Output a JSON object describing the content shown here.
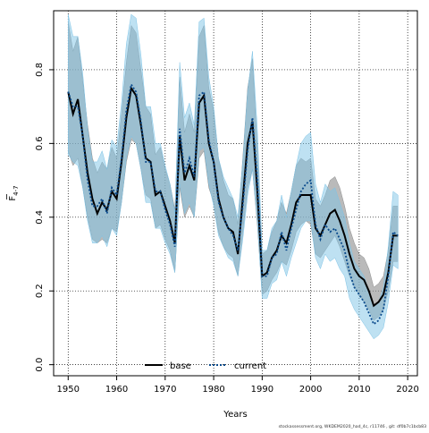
{
  "chart_data": {
    "type": "line",
    "title": "",
    "xlabel": "Years",
    "ylabel": "F",
    "ylabel_sub": "4-7",
    "xlim": [
      1947,
      2022
    ],
    "ylim": [
      -0.03,
      0.96
    ],
    "xticks": [
      1950,
      1960,
      1970,
      1980,
      1990,
      2000,
      2010,
      2020
    ],
    "yticks": [
      0.0,
      0.2,
      0.4,
      0.6,
      0.8
    ],
    "ytick_labels": [
      "0.0",
      "0.2",
      "0.4",
      "0.6",
      "0.8"
    ],
    "grid": true,
    "legend_placement": "bottom-center",
    "x": [
      1950,
      1951,
      1952,
      1953,
      1954,
      1955,
      1956,
      1957,
      1958,
      1959,
      1960,
      1961,
      1962,
      1963,
      1964,
      1965,
      1966,
      1967,
      1968,
      1969,
      1970,
      1971,
      1972,
      1973,
      1974,
      1975,
      1976,
      1977,
      1978,
      1979,
      1980,
      1981,
      1982,
      1983,
      1984,
      1985,
      1986,
      1987,
      1988,
      1989,
      1990,
      1991,
      1992,
      1993,
      1994,
      1995,
      1996,
      1997,
      1998,
      1999,
      2000,
      2001,
      2002,
      2003,
      2004,
      2005,
      2006,
      2007,
      2008,
      2009,
      2010,
      2011,
      2012,
      2013,
      2014,
      2015,
      2016,
      2017,
      2018
    ],
    "series": [
      {
        "name": "base",
        "color": "#000000",
        "band_color": "#8c8c8c",
        "values": [
          0.74,
          0.68,
          0.72,
          0.62,
          0.52,
          0.45,
          0.41,
          0.44,
          0.42,
          0.47,
          0.45,
          0.55,
          0.67,
          0.75,
          0.73,
          0.65,
          0.56,
          0.55,
          0.46,
          0.47,
          0.43,
          0.39,
          0.33,
          0.62,
          0.5,
          0.54,
          0.5,
          0.71,
          0.73,
          0.6,
          0.55,
          0.45,
          0.4,
          0.37,
          0.36,
          0.3,
          0.45,
          0.6,
          0.66,
          0.47,
          0.24,
          0.25,
          0.29,
          0.31,
          0.35,
          0.33,
          0.38,
          0.44,
          0.46,
          0.46,
          0.46,
          0.37,
          0.35,
          0.38,
          0.41,
          0.42,
          0.39,
          0.35,
          0.3,
          0.26,
          0.24,
          0.23,
          0.2,
          0.16,
          0.17,
          0.19,
          0.25,
          0.35,
          0.35
        ],
        "lower": [
          0.58,
          0.54,
          0.56,
          0.48,
          0.4,
          0.34,
          0.33,
          0.34,
          0.33,
          0.37,
          0.36,
          0.44,
          0.55,
          0.61,
          0.6,
          0.53,
          0.46,
          0.45,
          0.37,
          0.38,
          0.34,
          0.31,
          0.25,
          0.48,
          0.4,
          0.43,
          0.4,
          0.56,
          0.58,
          0.48,
          0.44,
          0.36,
          0.32,
          0.3,
          0.29,
          0.24,
          0.36,
          0.48,
          0.53,
          0.38,
          0.19,
          0.2,
          0.23,
          0.25,
          0.28,
          0.27,
          0.31,
          0.36,
          0.38,
          0.39,
          0.38,
          0.3,
          0.29,
          0.31,
          0.33,
          0.35,
          0.32,
          0.28,
          0.24,
          0.21,
          0.19,
          0.17,
          0.15,
          0.12,
          0.13,
          0.15,
          0.2,
          0.28,
          0.28
        ],
        "upper": [
          0.93,
          0.85,
          0.89,
          0.77,
          0.65,
          0.56,
          0.52,
          0.55,
          0.53,
          0.59,
          0.56,
          0.68,
          0.82,
          0.92,
          0.9,
          0.8,
          0.7,
          0.68,
          0.57,
          0.59,
          0.53,
          0.49,
          0.42,
          0.78,
          0.63,
          0.68,
          0.63,
          0.89,
          0.92,
          0.75,
          0.69,
          0.56,
          0.5,
          0.46,
          0.45,
          0.38,
          0.56,
          0.75,
          0.83,
          0.59,
          0.3,
          0.31,
          0.36,
          0.39,
          0.44,
          0.41,
          0.47,
          0.54,
          0.56,
          0.55,
          0.56,
          0.45,
          0.43,
          0.46,
          0.5,
          0.51,
          0.48,
          0.43,
          0.37,
          0.33,
          0.3,
          0.29,
          0.26,
          0.21,
          0.22,
          0.24,
          0.31,
          0.43,
          0.43
        ]
      },
      {
        "name": "current",
        "color": "#0a4a8c",
        "band_color": "#7ec3e6",
        "values": [
          0.74,
          0.7,
          0.7,
          0.62,
          0.5,
          0.43,
          0.43,
          0.45,
          0.41,
          0.48,
          0.46,
          0.56,
          0.69,
          0.76,
          0.74,
          0.66,
          0.55,
          0.55,
          0.47,
          0.47,
          0.42,
          0.38,
          0.32,
          0.64,
          0.52,
          0.56,
          0.51,
          0.73,
          0.74,
          0.61,
          0.55,
          0.44,
          0.4,
          0.37,
          0.35,
          0.31,
          0.43,
          0.58,
          0.67,
          0.5,
          0.24,
          0.24,
          0.29,
          0.3,
          0.36,
          0.31,
          0.37,
          0.42,
          0.47,
          0.49,
          0.5,
          0.38,
          0.34,
          0.38,
          0.36,
          0.37,
          0.34,
          0.31,
          0.25,
          0.21,
          0.19,
          0.17,
          0.14,
          0.11,
          0.12,
          0.15,
          0.24,
          0.36,
          0.35
        ],
        "lower": [
          0.57,
          0.55,
          0.54,
          0.48,
          0.39,
          0.33,
          0.33,
          0.35,
          0.32,
          0.37,
          0.35,
          0.44,
          0.56,
          0.62,
          0.6,
          0.53,
          0.44,
          0.44,
          0.37,
          0.37,
          0.33,
          0.3,
          0.25,
          0.49,
          0.41,
          0.44,
          0.4,
          0.58,
          0.59,
          0.49,
          0.43,
          0.35,
          0.32,
          0.29,
          0.28,
          0.24,
          0.34,
          0.46,
          0.53,
          0.39,
          0.18,
          0.18,
          0.22,
          0.23,
          0.28,
          0.24,
          0.29,
          0.33,
          0.37,
          0.39,
          0.39,
          0.29,
          0.26,
          0.3,
          0.28,
          0.29,
          0.26,
          0.24,
          0.18,
          0.15,
          0.13,
          0.11,
          0.09,
          0.07,
          0.08,
          0.1,
          0.17,
          0.27,
          0.26
        ],
        "upper": [
          0.95,
          0.89,
          0.89,
          0.79,
          0.64,
          0.55,
          0.55,
          0.58,
          0.53,
          0.61,
          0.59,
          0.71,
          0.87,
          0.95,
          0.94,
          0.84,
          0.7,
          0.7,
          0.6,
          0.6,
          0.54,
          0.49,
          0.41,
          0.82,
          0.67,
          0.71,
          0.65,
          0.93,
          0.94,
          0.78,
          0.7,
          0.56,
          0.51,
          0.48,
          0.45,
          0.4,
          0.55,
          0.74,
          0.85,
          0.64,
          0.31,
          0.31,
          0.37,
          0.39,
          0.46,
          0.4,
          0.47,
          0.54,
          0.6,
          0.62,
          0.63,
          0.49,
          0.44,
          0.49,
          0.47,
          0.48,
          0.44,
          0.4,
          0.33,
          0.28,
          0.26,
          0.24,
          0.2,
          0.16,
          0.17,
          0.21,
          0.32,
          0.47,
          0.46
        ]
      }
    ],
    "credit": "stockassessment.org, WKDEM2020_had_4c, r11746 , git: df0b7c1bcb83"
  }
}
